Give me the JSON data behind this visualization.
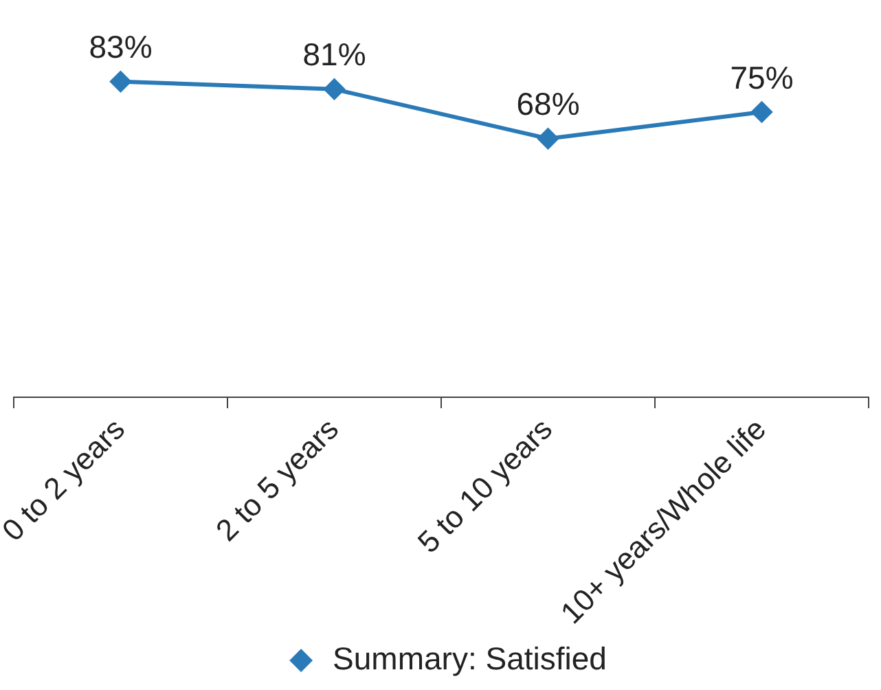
{
  "chart_data": {
    "type": "line",
    "categories": [
      "0 to 2 years",
      "2 to 5 years",
      "5 to 10 years",
      "10+ years/Whole life"
    ],
    "series": [
      {
        "name": "Summary: Satisfied",
        "color": "#2a7ab8",
        "values": [
          83,
          81,
          68,
          75
        ],
        "value_labels": [
          "83%",
          "81%",
          "68%",
          "75%"
        ]
      }
    ],
    "tick_labels": "x",
    "grid": false,
    "legend": "bottom",
    "marker": "diamond",
    "line_style": "solid"
  }
}
